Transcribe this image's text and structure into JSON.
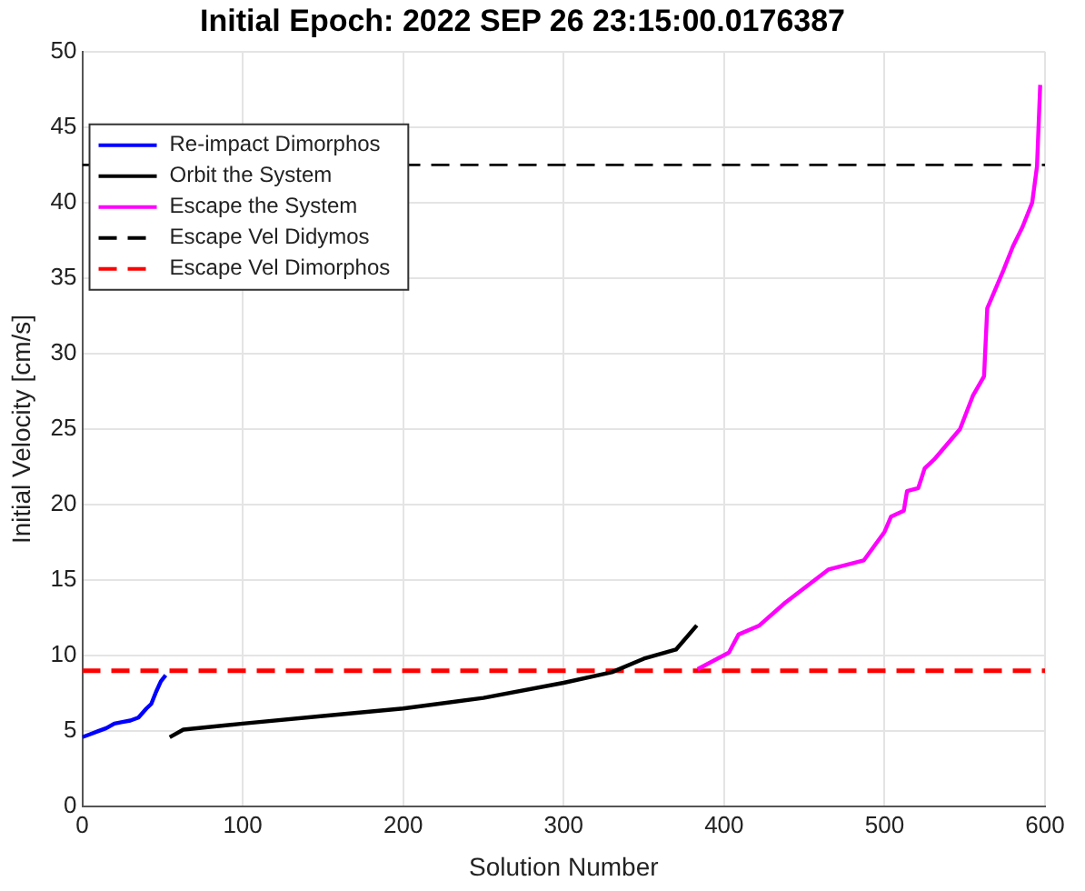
{
  "chart_data": {
    "type": "line",
    "title": "Initial Epoch: 2022 SEP 26 23:15:00.0176387",
    "xlabel": "Solution Number",
    "ylabel": "Initial Velocity [cm/s]",
    "xlim": [
      0,
      600
    ],
    "xticks": [
      0,
      100,
      200,
      300,
      400,
      500,
      600
    ],
    "ylim": [
      0,
      50
    ],
    "yticks": [
      0,
      5,
      10,
      15,
      20,
      25,
      30,
      35,
      40,
      45,
      50
    ],
    "grid": true,
    "legend": "top left",
    "marker": "none",
    "series": [
      {
        "name": "Re-impact Dimorphos",
        "color": "#0000ff",
        "x": [
          0,
          5,
          10,
          15,
          20,
          25,
          30,
          35,
          40,
          43,
          46,
          49,
          52
        ],
        "values": [
          4.6,
          4.8,
          5.0,
          5.2,
          5.5,
          5.6,
          5.7,
          5.9,
          6.5,
          6.8,
          7.6,
          8.3,
          8.7
        ]
      },
      {
        "name": "Orbit the System",
        "color": "#000000",
        "x": [
          54.5,
          63,
          100,
          150,
          200,
          250,
          300,
          330,
          350,
          370,
          383
        ],
        "values": [
          4.6,
          5.1,
          5.5,
          6.0,
          6.5,
          7.2,
          8.2,
          8.9,
          9.8,
          10.4,
          12.0
        ]
      },
      {
        "name": "Escape the System",
        "color": "#ff00ff",
        "x": [
          383.5,
          403,
          409,
          422,
          438,
          465,
          487,
          500,
          504,
          512,
          514,
          521,
          525,
          531,
          547,
          555,
          562,
          564,
          574,
          580,
          586,
          592,
          595,
          597
        ],
        "values": [
          9.1,
          10.2,
          11.4,
          12.0,
          13.5,
          15.7,
          16.3,
          18.2,
          19.2,
          19.6,
          20.9,
          21.1,
          22.4,
          23.0,
          25.0,
          27.2,
          28.5,
          33.0,
          35.5,
          37.1,
          38.4,
          40.0,
          42.4,
          47.8
        ]
      }
    ],
    "ref_lines": [
      {
        "axis": "y",
        "value": 42.5,
        "label": "Escape Vel Didymos",
        "color": "#000000",
        "line_style": "dashed"
      },
      {
        "axis": "y",
        "value": 9,
        "label": "Escape Vel Dimorphos",
        "color": "#ff0000",
        "line_style": "dashed"
      }
    ]
  }
}
